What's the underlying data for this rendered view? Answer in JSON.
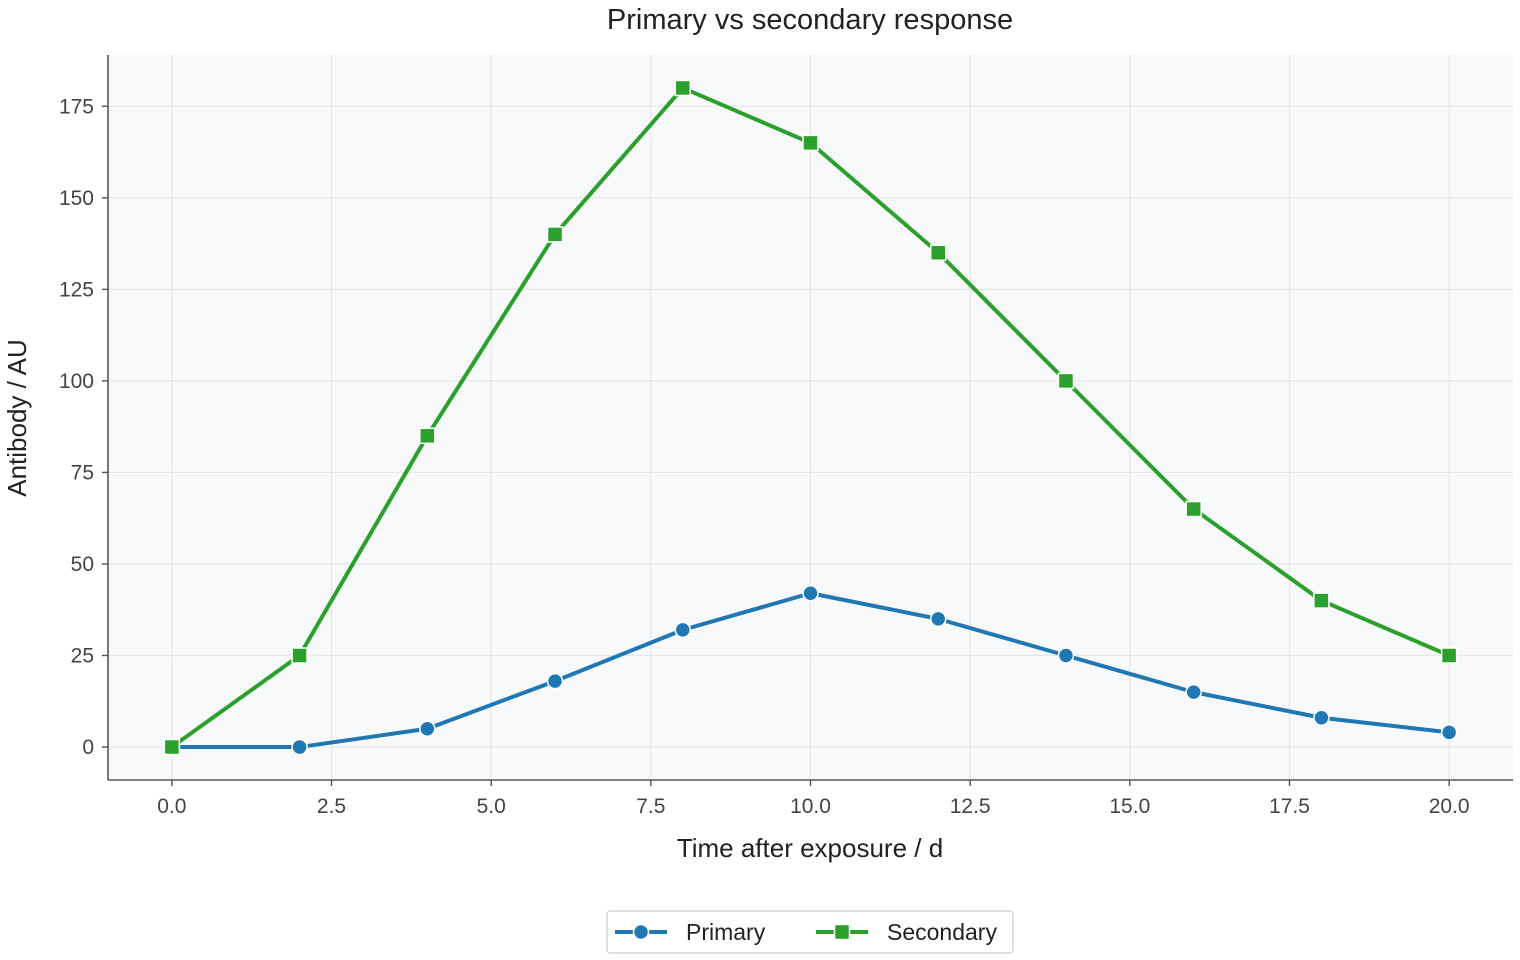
{
  "chart_data": {
    "type": "line",
    "title": "Primary vs secondary response",
    "xlabel": "Time after exposure / d",
    "ylabel": "Antibody / AU",
    "x": [
      0,
      2,
      4,
      6,
      8,
      10,
      12,
      14,
      16,
      18,
      20
    ],
    "xlim": [
      -1,
      21
    ],
    "ylim": [
      -9,
      189
    ],
    "x_ticks": [
      "0.0",
      "2.5",
      "5.0",
      "7.5",
      "10.0",
      "12.5",
      "15.0",
      "17.5",
      "20.0"
    ],
    "y_ticks": [
      "0",
      "25",
      "50",
      "75",
      "100",
      "125",
      "150",
      "175"
    ],
    "grid": true,
    "legend_position": "bottom-center",
    "series": [
      {
        "name": "Primary",
        "color": "#1f77b4",
        "marker": "circle",
        "values": [
          0,
          0,
          5,
          18,
          32,
          42,
          35,
          25,
          15,
          8,
          4
        ]
      },
      {
        "name": "Secondary",
        "color": "#2ca02c",
        "marker": "square",
        "values": [
          0,
          25,
          85,
          140,
          180,
          165,
          135,
          100,
          65,
          40,
          25
        ]
      }
    ]
  }
}
